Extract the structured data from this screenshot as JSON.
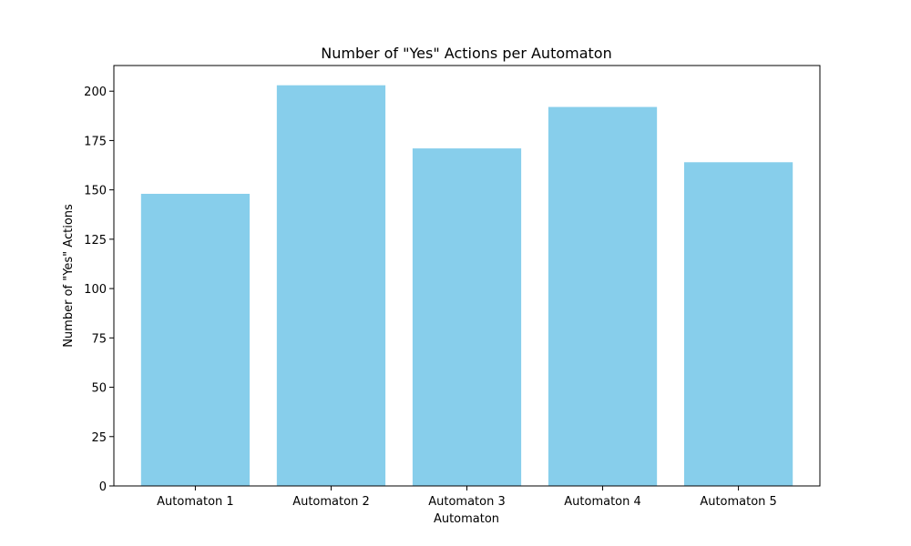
{
  "chart_data": {
    "type": "bar",
    "title": "Number of \"Yes\" Actions per Automaton",
    "xlabel": "Automaton",
    "ylabel": "Number of \"Yes\" Actions",
    "categories": [
      "Automaton 1",
      "Automaton 2",
      "Automaton 3",
      "Automaton 4",
      "Automaton 5"
    ],
    "values": [
      148,
      203,
      171,
      192,
      164
    ],
    "ylim": [
      0,
      213
    ],
    "yticks": [
      0,
      25,
      50,
      75,
      100,
      125,
      150,
      175,
      200
    ],
    "bar_color": "#87CEEB",
    "grid": false,
    "legend": false
  }
}
